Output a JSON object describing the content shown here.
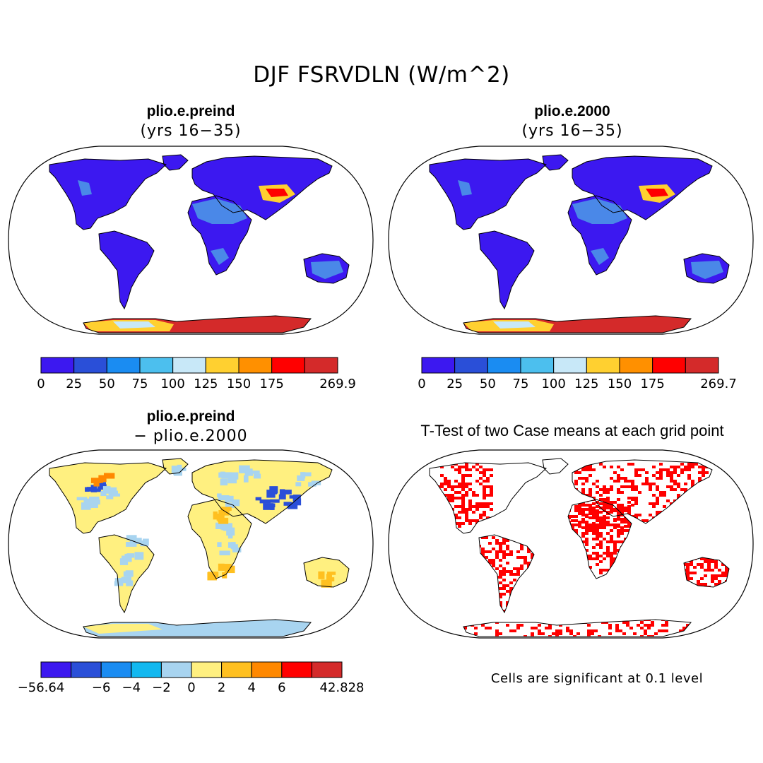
{
  "figure": {
    "title": "DJF FSRVDLN (W/m^2)"
  },
  "panels": [
    {
      "id": "preind",
      "title": "plio.e.preind",
      "subtitle": "(yrs 16−35)"
    },
    {
      "id": "p2000",
      "title": "plio.e.2000",
      "subtitle": "(yrs 16−35)"
    },
    {
      "id": "diff",
      "title": "plio.e.preind",
      "subtitle": "− plio.e.2000"
    },
    {
      "id": "ttest",
      "title": "T-Test of two Case means at each grid point",
      "note": "Cells are significant at 0.1 level"
    }
  ],
  "colorbars": {
    "preind": {
      "colors": [
        "#3c18f0",
        "#2a4fd8",
        "#1a8cf2",
        "#4cbfee",
        "#c8e8f8",
        "#ffd030",
        "#ff9000",
        "#ff0000",
        "#d42a2a"
      ],
      "labels": [
        "0",
        "25",
        "50",
        "75",
        "100",
        "125",
        "150",
        "175",
        "",
        "269.9"
      ]
    },
    "p2000": {
      "colors": [
        "#3c18f0",
        "#2a4fd8",
        "#1a8cf2",
        "#4cbfee",
        "#c8e8f8",
        "#ffd030",
        "#ff9000",
        "#ff0000",
        "#d42a2a"
      ],
      "labels": [
        "0",
        "25",
        "50",
        "75",
        "100",
        "125",
        "150",
        "175",
        "",
        "269.7"
      ]
    },
    "diff": {
      "colors": [
        "#3c18f0",
        "#2a4fd8",
        "#1a8cf2",
        "#12b8f0",
        "#a8d4f0",
        "#fff080",
        "#ffc020",
        "#ff8800",
        "#ff0000",
        "#d42a2a"
      ],
      "labels": [
        "−56.64",
        "",
        "−6",
        "−4",
        "−2",
        "0",
        "2",
        "4",
        "6",
        "",
        "42.828"
      ]
    }
  },
  "map_colors": {
    "preind": {
      "land": "#3c18f0",
      "desert": "#4a88e8",
      "hot": "#ff0000",
      "antarctica": "#d42a2a",
      "coast": "#ffd030"
    },
    "diff": {
      "land": "#fff080",
      "cool": "#a8d4f0",
      "blue": "#2a4fd8",
      "warm": "#ffc020"
    },
    "ttest": {
      "signif": "#ff0000"
    }
  }
}
